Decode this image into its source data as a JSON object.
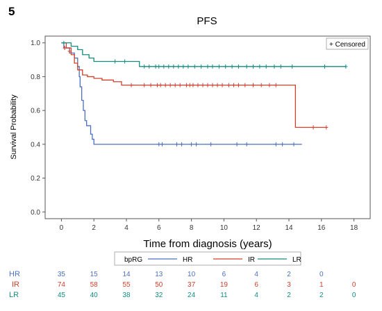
{
  "panel_label": "5",
  "colors": {
    "HR": "#4a6fbf",
    "IR": "#d0402c",
    "LR": "#138c80",
    "axis": "#555555",
    "grid": "#cccccc"
  },
  "chart_data": {
    "type": "line",
    "title": "PFS",
    "xlabel": "Time from diagnosis (years)",
    "ylabel": "Survival Probability",
    "xlim": [
      -1,
      19
    ],
    "ylim": [
      -0.04,
      1.04
    ],
    "xticks": [
      0,
      2,
      4,
      6,
      8,
      10,
      12,
      14,
      16,
      18
    ],
    "yticks": [
      0.0,
      0.2,
      0.4,
      0.6,
      0.8,
      1.0
    ],
    "censor_legend": "+ Censored",
    "legend_title": "bpRG",
    "legend_position": "bottom",
    "series": [
      {
        "name": "HR",
        "steps": [
          [
            0,
            1.0
          ],
          [
            0.15,
            0.97
          ],
          [
            0.5,
            0.94
          ],
          [
            0.8,
            0.91
          ],
          [
            1.0,
            0.86
          ],
          [
            1.1,
            0.8
          ],
          [
            1.15,
            0.74
          ],
          [
            1.25,
            0.66
          ],
          [
            1.35,
            0.6
          ],
          [
            1.45,
            0.54
          ],
          [
            1.55,
            0.51
          ],
          [
            1.8,
            0.46
          ],
          [
            1.9,
            0.43
          ],
          [
            2.0,
            0.4
          ],
          [
            14.8,
            0.4
          ]
        ],
        "censored": [
          [
            0.2,
            0.97
          ],
          [
            6.0,
            0.4
          ],
          [
            6.2,
            0.4
          ],
          [
            7.1,
            0.4
          ],
          [
            7.4,
            0.4
          ],
          [
            8.0,
            0.4
          ],
          [
            8.3,
            0.4
          ],
          [
            9.2,
            0.4
          ],
          [
            10.8,
            0.4
          ],
          [
            11.4,
            0.4
          ],
          [
            13.2,
            0.4
          ],
          [
            13.6,
            0.4
          ],
          [
            14.3,
            0.4
          ]
        ]
      },
      {
        "name": "IR",
        "steps": [
          [
            0,
            1.0
          ],
          [
            0.3,
            0.97
          ],
          [
            0.6,
            0.93
          ],
          [
            0.8,
            0.88
          ],
          [
            1.0,
            0.84
          ],
          [
            1.3,
            0.81
          ],
          [
            1.6,
            0.8
          ],
          [
            2.0,
            0.79
          ],
          [
            2.5,
            0.78
          ],
          [
            3.2,
            0.77
          ],
          [
            3.7,
            0.75
          ],
          [
            14.4,
            0.75
          ],
          [
            14.4,
            0.5
          ],
          [
            16.3,
            0.5
          ]
        ],
        "censored": [
          [
            0.2,
            0.97
          ],
          [
            0.5,
            0.95
          ],
          [
            4.3,
            0.75
          ],
          [
            5.1,
            0.75
          ],
          [
            5.5,
            0.75
          ],
          [
            5.9,
            0.75
          ],
          [
            6.1,
            0.75
          ],
          [
            6.4,
            0.75
          ],
          [
            6.7,
            0.75
          ],
          [
            7.0,
            0.75
          ],
          [
            7.3,
            0.75
          ],
          [
            7.7,
            0.75
          ],
          [
            7.9,
            0.75
          ],
          [
            8.1,
            0.75
          ],
          [
            8.4,
            0.75
          ],
          [
            8.7,
            0.75
          ],
          [
            9.0,
            0.75
          ],
          [
            9.3,
            0.75
          ],
          [
            9.6,
            0.75
          ],
          [
            9.9,
            0.75
          ],
          [
            10.3,
            0.75
          ],
          [
            10.6,
            0.75
          ],
          [
            10.9,
            0.75
          ],
          [
            11.3,
            0.75
          ],
          [
            11.8,
            0.75
          ],
          [
            12.3,
            0.75
          ],
          [
            12.8,
            0.75
          ],
          [
            13.2,
            0.75
          ],
          [
            15.5,
            0.5
          ],
          [
            16.3,
            0.5
          ]
        ]
      },
      {
        "name": "LR",
        "steps": [
          [
            0,
            1.0
          ],
          [
            0.6,
            0.98
          ],
          [
            1.0,
            0.96
          ],
          [
            1.3,
            0.93
          ],
          [
            1.7,
            0.91
          ],
          [
            2.0,
            0.89
          ],
          [
            4.8,
            0.89
          ],
          [
            4.8,
            0.86
          ],
          [
            17.5,
            0.86
          ]
        ],
        "censored": [
          [
            0.15,
            1.0
          ],
          [
            3.3,
            0.89
          ],
          [
            3.9,
            0.89
          ],
          [
            5.1,
            0.86
          ],
          [
            5.4,
            0.86
          ],
          [
            5.8,
            0.86
          ],
          [
            6.0,
            0.86
          ],
          [
            6.3,
            0.86
          ],
          [
            6.6,
            0.86
          ],
          [
            6.9,
            0.86
          ],
          [
            7.2,
            0.86
          ],
          [
            7.5,
            0.86
          ],
          [
            7.8,
            0.86
          ],
          [
            8.2,
            0.86
          ],
          [
            8.6,
            0.86
          ],
          [
            9.0,
            0.86
          ],
          [
            9.3,
            0.86
          ],
          [
            9.7,
            0.86
          ],
          [
            10.1,
            0.86
          ],
          [
            10.5,
            0.86
          ],
          [
            10.9,
            0.86
          ],
          [
            11.4,
            0.86
          ],
          [
            11.8,
            0.86
          ],
          [
            12.2,
            0.86
          ],
          [
            12.6,
            0.86
          ],
          [
            13.1,
            0.86
          ],
          [
            13.5,
            0.86
          ],
          [
            14.2,
            0.86
          ],
          [
            16.2,
            0.86
          ],
          [
            17.5,
            0.86
          ]
        ]
      }
    ],
    "risk_table": {
      "times": [
        0,
        2,
        4,
        6,
        8,
        10,
        12,
        14,
        16,
        18
      ],
      "rows": [
        {
          "name": "HR",
          "values": [
            "35",
            "15",
            "14",
            "13",
            "10",
            "6",
            "4",
            "2",
            "0",
            ""
          ]
        },
        {
          "name": "IR",
          "values": [
            "74",
            "58",
            "55",
            "50",
            "37",
            "19",
            "6",
            "3",
            "1",
            "0"
          ]
        },
        {
          "name": "LR",
          "values": [
            "45",
            "40",
            "38",
            "32",
            "24",
            "11",
            "4",
            "2",
            "2",
            "0"
          ]
        }
      ]
    }
  }
}
